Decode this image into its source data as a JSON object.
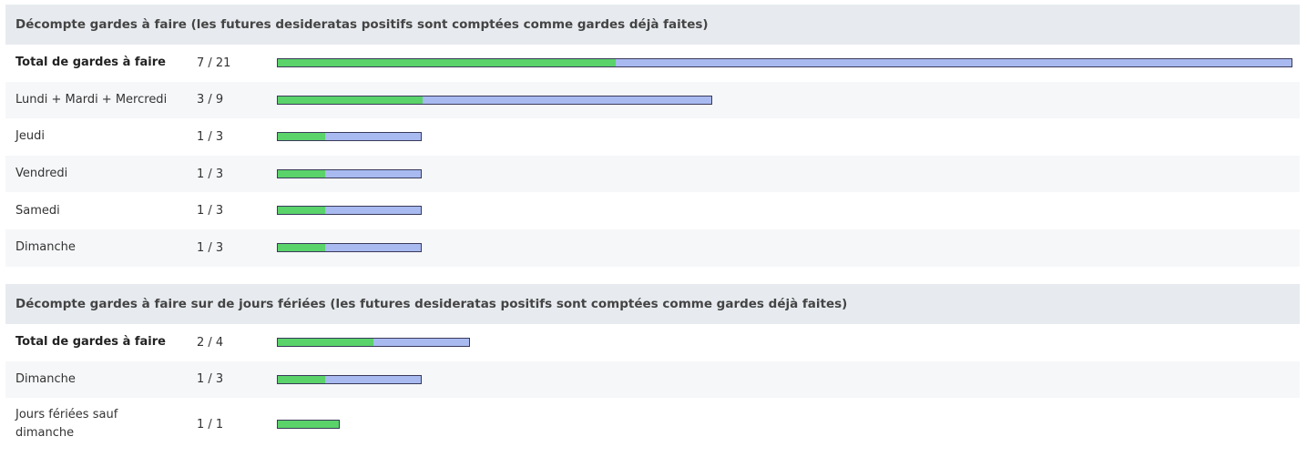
{
  "sections": [
    {
      "title": "Décompte gardes à faire (les futures desideratas positifs sont comptées comme gardes déjà faites)",
      "rows": [
        {
          "label": "Total de gardes à faire",
          "done": 7,
          "total": 21,
          "count": "7 / 21",
          "bold": true
        },
        {
          "label": "Lundi + Mardi + Mercredi",
          "done": 3,
          "total": 9,
          "count": "3 / 9",
          "bold": false
        },
        {
          "label": "Jeudi",
          "done": 1,
          "total": 3,
          "count": "1 / 3",
          "bold": false
        },
        {
          "label": "Vendredi",
          "done": 1,
          "total": 3,
          "count": "1 / 3",
          "bold": false
        },
        {
          "label": "Samedi",
          "done": 1,
          "total": 3,
          "count": "1 / 3",
          "bold": false
        },
        {
          "label": "Dimanche",
          "done": 1,
          "total": 3,
          "count": "1 / 3",
          "bold": false
        }
      ]
    },
    {
      "title": "Décompte gardes à faire sur de jours fériées (les futures desideratas positifs sont comptées comme gardes déjà faites)",
      "rows": [
        {
          "label": "Total de gardes à faire",
          "done": 2,
          "total": 4,
          "count": "2 / 4",
          "bold": true
        },
        {
          "label": "Dimanche",
          "done": 1,
          "total": 3,
          "count": "1 / 3",
          "bold": false
        },
        {
          "label": "Jours fériées sauf dimanche",
          "done": 1,
          "total": 1,
          "count": "1 / 1",
          "bold": false
        }
      ]
    }
  ],
  "colors": {
    "done": "#5ad36a",
    "remaining": "#a8baf0",
    "header_bg": "#e7ebef",
    "row_alt_bg": "#f6f7f9"
  }
}
